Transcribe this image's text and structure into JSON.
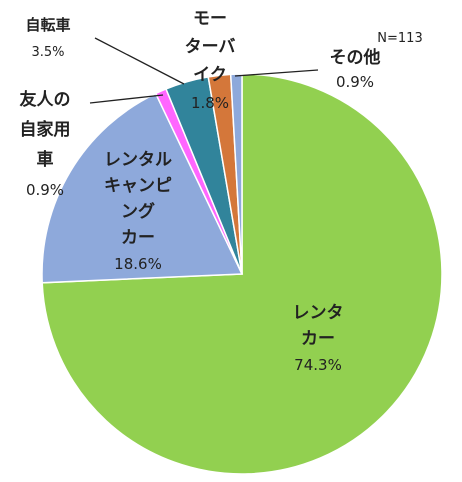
{
  "chart_data": {
    "type": "pie",
    "note": "N=113",
    "start_angle_deg": 0,
    "direction": "clockwise",
    "slices": [
      {
        "label": [
          "レンタ",
          "カー"
        ],
        "value": 74.3,
        "value_text": "74.3%",
        "color": "#92D050"
      },
      {
        "label": [
          "レンタル",
          "キャンピ",
          "ング",
          "カー"
        ],
        "value": 18.6,
        "value_text": "18.6%",
        "color": "#8EA9DB"
      },
      {
        "label": [
          "友人の",
          "自家用",
          "車"
        ],
        "value": 0.9,
        "value_text": "0.9%",
        "color": "#FF66FF"
      },
      {
        "label": [
          "自転車"
        ],
        "value": 3.5,
        "value_text": "3.5%",
        "color": "#31849B"
      },
      {
        "label": [
          "モー",
          "ターバ",
          "イク"
        ],
        "value": 1.8,
        "value_text": "1.8%",
        "color": "#D4773A"
      },
      {
        "label": [
          "その他"
        ],
        "value": 0.9,
        "value_text": "0.9%",
        "color": "#8EA9DB"
      }
    ]
  }
}
